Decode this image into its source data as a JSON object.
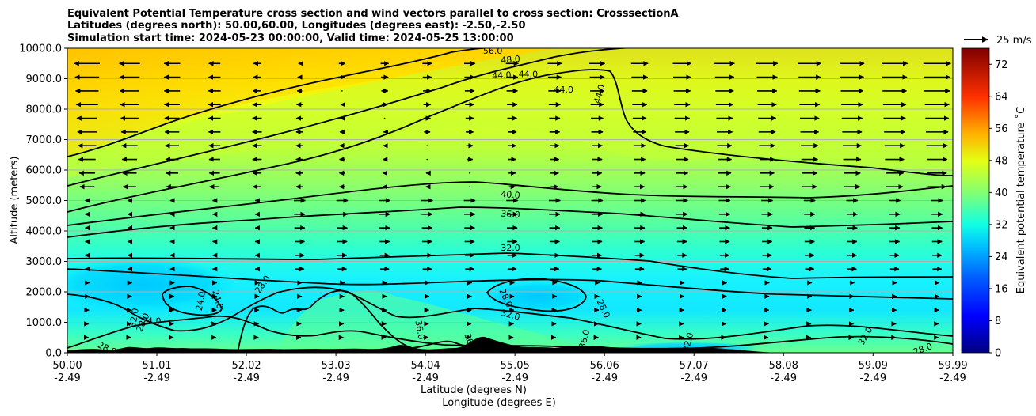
{
  "chart_data": {
    "type": "heatmap",
    "title_lines": [
      "Equivalent Potential Temperature cross section and wind vectors parallel to cross section: CrosssectionA",
      "Latitudes (degrees north): 50.00,60.00, Longitudes (degrees east): -2.50,-2.50",
      "Simulation start time: 2024-05-23 00:00:00, Valid time: 2024-05-25 13:00:00"
    ],
    "xlabel": "Latitude (degrees N)",
    "xlabel2": "Longitude (degrees E)",
    "ylabel": "Altitude (meters)",
    "colorbar_label": "Equivalent potential temperature ˚C",
    "quiver_key": "25 m/s",
    "xlim": [
      50.0,
      59.99
    ],
    "ylim": [
      0,
      10000
    ],
    "x_ticks": [
      {
        "lat": "50.00",
        "lon": "-2.49",
        "value": 50.0
      },
      {
        "lat": "51.01",
        "lon": "-2.49",
        "value": 51.01
      },
      {
        "lat": "52.02",
        "lon": "-2.49",
        "value": 52.02
      },
      {
        "lat": "53.03",
        "lon": "-2.49",
        "value": 53.03
      },
      {
        "lat": "54.04",
        "lon": "-2.49",
        "value": 54.04
      },
      {
        "lat": "55.05",
        "lon": "-2.49",
        "value": 55.05
      },
      {
        "lat": "56.06",
        "lon": "-2.49",
        "value": 56.06
      },
      {
        "lat": "57.07",
        "lon": "-2.49",
        "value": 57.07
      },
      {
        "lat": "58.08",
        "lon": "-2.49",
        "value": 58.08
      },
      {
        "lat": "59.09",
        "lon": "-2.49",
        "value": 59.09
      },
      {
        "lat": "59.99",
        "lon": "-2.49",
        "value": 59.99
      }
    ],
    "y_ticks": [
      {
        "label": "0.0",
        "value": 0
      },
      {
        "label": "1000.0",
        "value": 1000
      },
      {
        "label": "2000.0",
        "value": 2000
      },
      {
        "label": "3000.0",
        "value": 3000
      },
      {
        "label": "4000.0",
        "value": 4000
      },
      {
        "label": "5000.0",
        "value": 5000
      },
      {
        "label": "6000.0",
        "value": 6000
      },
      {
        "label": "7000.0",
        "value": 7000
      },
      {
        "label": "8000.0",
        "value": 8000
      },
      {
        "label": "9000.0",
        "value": 9000
      },
      {
        "label": "10000.0",
        "value": 10000
      }
    ],
    "colorbar": {
      "range": [
        0,
        76
      ],
      "ticks": [
        "0",
        "8",
        "16",
        "24",
        "32",
        "40",
        "48",
        "56",
        "64",
        "72"
      ],
      "tick_values": [
        0,
        8,
        16,
        24,
        32,
        40,
        48,
        56,
        64,
        72
      ]
    },
    "contour_levels": [
      24,
      28,
      32,
      36,
      40,
      44,
      48,
      52,
      56
    ],
    "contour_labels": [
      {
        "text": "56.0",
        "x": 54.8,
        "y": 9920,
        "angle": 0
      },
      {
        "text": "48.0",
        "x": 55.0,
        "y": 9640,
        "angle": -4
      },
      {
        "text": "44.0",
        "x": 54.9,
        "y": 9120,
        "angle": -3
      },
      {
        "text": "44.0",
        "x": 55.2,
        "y": 9150,
        "angle": 0
      },
      {
        "text": "44.0",
        "x": 55.6,
        "y": 8650,
        "angle": 0
      },
      {
        "text": "44.0",
        "x": 56.0,
        "y": 8500,
        "angle": -75
      },
      {
        "text": "40.0",
        "x": 55.0,
        "y": 5200,
        "angle": 5
      },
      {
        "text": "36.0",
        "x": 55.0,
        "y": 4560,
        "angle": 5
      },
      {
        "text": "32.0",
        "x": 55.0,
        "y": 3460,
        "angle": 0
      },
      {
        "text": "28.0",
        "x": 52.2,
        "y": 2250,
        "angle": -55
      },
      {
        "text": "24.0",
        "x": 51.7,
        "y": 1750,
        "angle": 75
      },
      {
        "text": "24.0",
        "x": 51.5,
        "y": 1700,
        "angle": -80
      },
      {
        "text": "24.0",
        "x": 50.95,
        "y": 1050,
        "angle": 0
      },
      {
        "text": "32.0",
        "x": 50.75,
        "y": 1150,
        "angle": -80
      },
      {
        "text": "28.0",
        "x": 50.85,
        "y": 1000,
        "angle": -65
      },
      {
        "text": "28.0",
        "x": 50.45,
        "y": 150,
        "angle": 25
      },
      {
        "text": "28.0",
        "x": 54.95,
        "y": 1800,
        "angle": 65
      },
      {
        "text": "32.0",
        "x": 55.0,
        "y": 1250,
        "angle": 15
      },
      {
        "text": "28.0",
        "x": 56.05,
        "y": 1450,
        "angle": 65
      },
      {
        "text": "36.0",
        "x": 53.98,
        "y": 750,
        "angle": 80
      },
      {
        "text": "36.0",
        "x": 54.55,
        "y": 330,
        "angle": 70
      },
      {
        "text": "36.0",
        "x": 55.83,
        "y": 450,
        "angle": -75
      },
      {
        "text": "28.0",
        "x": 56.0,
        "y": 50,
        "angle": 0
      },
      {
        "text": "28.0",
        "x": 56.6,
        "y": 50,
        "angle": 0
      },
      {
        "text": "32.0",
        "x": 59.0,
        "y": 550,
        "angle": -60
      },
      {
        "text": "28.0",
        "x": 59.65,
        "y": 130,
        "angle": -20
      },
      {
        "text": "32.0",
        "x": 57.0,
        "y": 350,
        "angle": -75
      }
    ]
  }
}
